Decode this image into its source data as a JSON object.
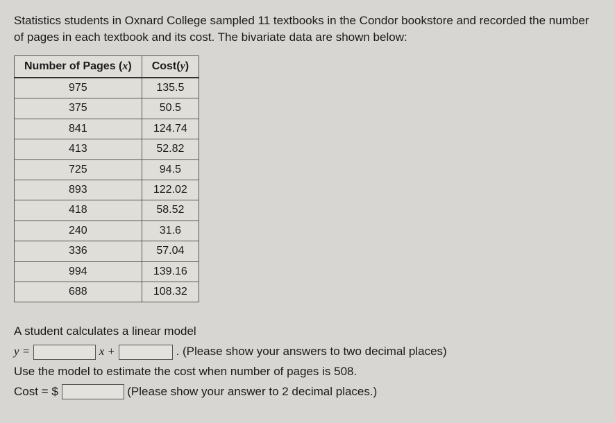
{
  "intro": "Statistics students in Oxnard College sampled 11 textbooks in the Condor bookstore and recorded the number of pages in each textbook and its cost. The bivariate data are shown below:",
  "table": {
    "header_x_prefix": "Number of Pages (",
    "header_x_var": "x",
    "header_x_suffix": ")",
    "header_y_prefix": "Cost(",
    "header_y_var": "y",
    "header_y_suffix": ")",
    "rows": [
      {
        "x": "975",
        "y": "135.5"
      },
      {
        "x": "375",
        "y": "50.5"
      },
      {
        "x": "841",
        "y": "124.74"
      },
      {
        "x": "413",
        "y": "52.82"
      },
      {
        "x": "725",
        "y": "94.5"
      },
      {
        "x": "893",
        "y": "122.02"
      },
      {
        "x": "418",
        "y": "58.52"
      },
      {
        "x": "240",
        "y": "31.6"
      },
      {
        "x": "336",
        "y": "57.04"
      },
      {
        "x": "994",
        "y": "139.16"
      },
      {
        "x": "688",
        "y": "108.32"
      }
    ]
  },
  "q": {
    "line1": "A student calculates a linear model",
    "y_eq": "y =",
    "x_plus": "x +",
    "hint1": ". (Please show your answers to two decimal places)",
    "line3": "Use the model to estimate the cost when number of pages is 508.",
    "cost_eq": "Cost = $",
    "hint2": "(Please show your answer to 2 decimal places.)"
  }
}
